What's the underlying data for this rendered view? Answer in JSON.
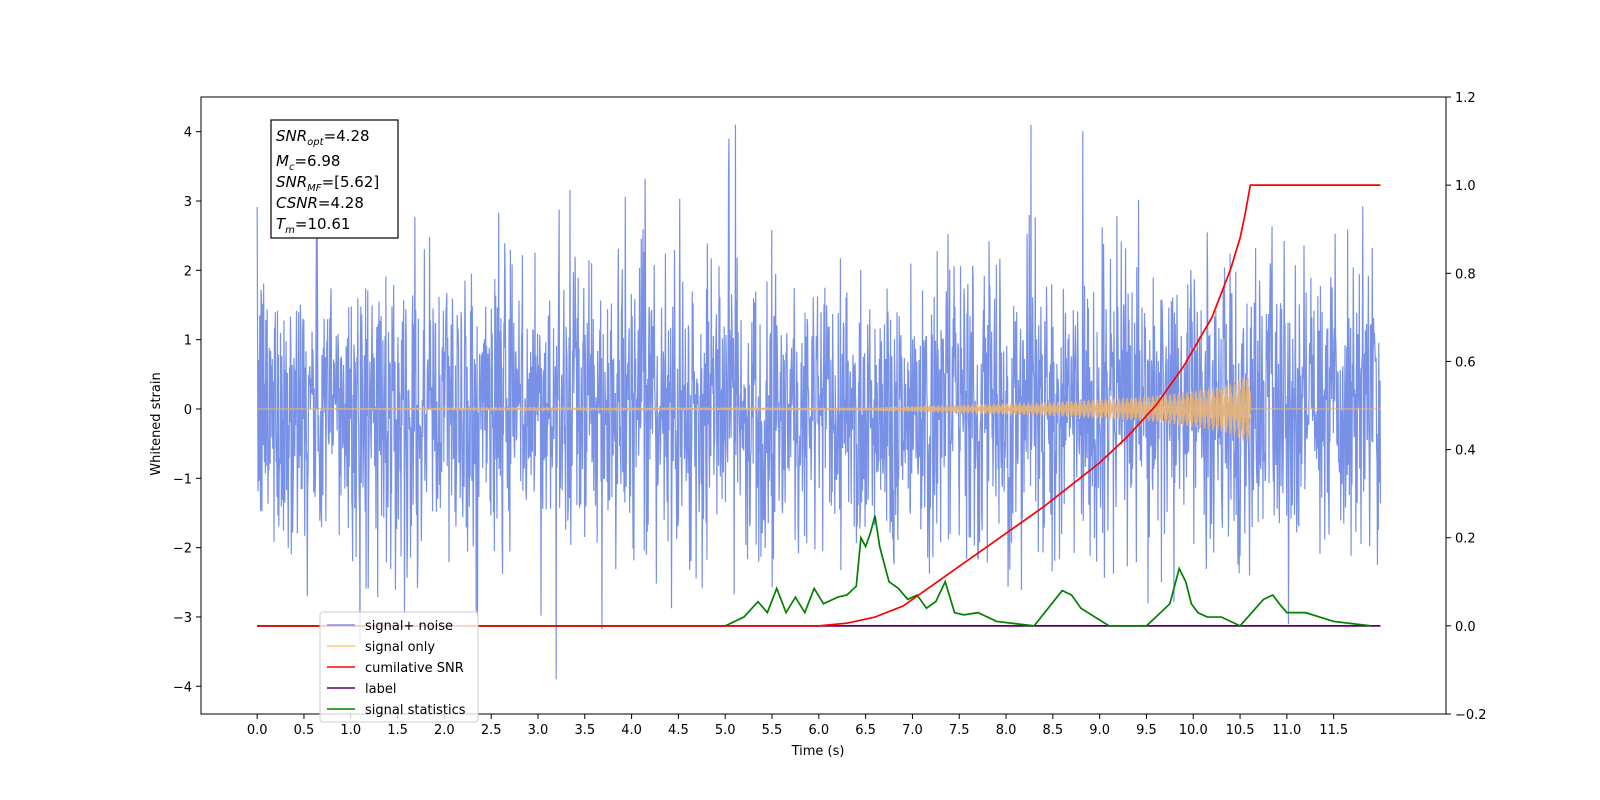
{
  "chart_data": {
    "type": "line",
    "xlabel": "Time (s)",
    "ylabel": "Whitened strain",
    "xlim": [
      -0.6,
      12.7
    ],
    "ylim": [
      -4.4,
      4.5
    ],
    "y2lim": [
      -0.2,
      1.2
    ],
    "x_ticks": [
      0.0,
      0.5,
      1.0,
      1.5,
      2.0,
      2.5,
      3.0,
      3.5,
      4.0,
      4.5,
      5.0,
      5.5,
      6.0,
      6.5,
      7.0,
      7.5,
      8.0,
      8.5,
      9.0,
      9.5,
      10.0,
      10.5,
      11.0,
      11.5
    ],
    "x_tick_labels": [
      "0.0",
      "0.5",
      "1.0",
      "1.5",
      "2.0",
      "2.5",
      "3.0",
      "3.5",
      "4.0",
      "4.5",
      "5.0",
      "5.5",
      "6.0",
      "6.5",
      "7.0",
      "7.5",
      "8.0",
      "8.5",
      "9.0",
      "9.5",
      "10.0",
      "10.5",
      "11.0",
      "11.5"
    ],
    "y_ticks": [
      -4,
      -3,
      -2,
      -1,
      0,
      1,
      2,
      3,
      4
    ],
    "y_tick_labels": [
      "−4",
      "−3",
      "−2",
      "−1",
      "0",
      "1",
      "2",
      "3",
      "4"
    ],
    "y2_ticks": [
      -0.2,
      0.0,
      0.2,
      0.4,
      0.6,
      0.8,
      1.0,
      1.2
    ],
    "y2_tick_labels": [
      "−0.2",
      "0.0",
      "0.2",
      "0.4",
      "0.6",
      "0.8",
      "1.0",
      "1.2"
    ],
    "grid": false,
    "legend_position": "lower-left",
    "annotation": {
      "lines": [
        {
          "sym": "SNR",
          "sub": "opt",
          "value": "=4.28"
        },
        {
          "sym": "M",
          "sub": "c",
          "value": "=6.98"
        },
        {
          "sym": "SNR",
          "sub": "MF",
          "value": "=[5.62]"
        },
        {
          "sym": "CSNR",
          "sub": "",
          "value": "=4.28"
        },
        {
          "sym": "T",
          "sub": "m",
          "value": "=10.61"
        }
      ]
    },
    "series": [
      {
        "name": "signal+ noise",
        "color": "#7891e6",
        "axis": "left",
        "x_range": [
          0.0,
          12.0
        ],
        "noise_sigma": 1.0,
        "extreme_range": [
          -3.9,
          4.1
        ]
      },
      {
        "name": "signal only",
        "color": "#e8b478",
        "axis": "left",
        "x_range": [
          0.0,
          12.0
        ],
        "merger_time": 10.61,
        "envelope": {
          "x": [
            0.0,
            6.5,
            7.5,
            8.5,
            9.5,
            10.0,
            10.4,
            10.61
          ],
          "y": [
            0.0,
            0.02,
            0.06,
            0.1,
            0.18,
            0.26,
            0.36,
            0.52
          ]
        }
      },
      {
        "name": "cumilative SNR",
        "color": "#ff0000",
        "axis": "right",
        "x": [
          0.0,
          5.5,
          6.0,
          6.3,
          6.6,
          6.9,
          7.2,
          7.5,
          7.8,
          8.1,
          8.4,
          8.7,
          9.0,
          9.3,
          9.6,
          9.9,
          10.2,
          10.4,
          10.5,
          10.55,
          10.61,
          11.0,
          12.0
        ],
        "y": [
          0.0,
          0.0,
          0.0,
          0.006,
          0.02,
          0.045,
          0.09,
          0.135,
          0.18,
          0.225,
          0.27,
          0.32,
          0.37,
          0.43,
          0.5,
          0.59,
          0.7,
          0.81,
          0.88,
          0.93,
          1.0,
          1.0,
          1.0
        ]
      },
      {
        "name": "label",
        "color": "#5a006a",
        "axis": "right",
        "x": [
          0.0,
          12.0
        ],
        "y": [
          0.0,
          0.0
        ]
      },
      {
        "name": "signal statistics",
        "color": "#008000",
        "axis": "right",
        "x": [
          0.0,
          5.0,
          5.2,
          5.35,
          5.45,
          5.55,
          5.65,
          5.75,
          5.85,
          5.95,
          6.05,
          6.2,
          6.3,
          6.4,
          6.45,
          6.5,
          6.55,
          6.6,
          6.65,
          6.75,
          6.85,
          6.95,
          7.05,
          7.15,
          7.25,
          7.35,
          7.45,
          7.55,
          7.7,
          7.9,
          8.3,
          8.6,
          8.7,
          8.8,
          8.95,
          9.1,
          9.5,
          9.75,
          9.85,
          9.92,
          9.98,
          10.05,
          10.15,
          10.3,
          10.5,
          10.75,
          10.85,
          10.92,
          11.0,
          11.2,
          11.5,
          11.9
        ],
        "y": [
          0.0,
          0.0,
          0.02,
          0.055,
          0.03,
          0.085,
          0.03,
          0.065,
          0.03,
          0.085,
          0.05,
          0.065,
          0.07,
          0.09,
          0.2,
          0.18,
          0.21,
          0.25,
          0.18,
          0.1,
          0.085,
          0.06,
          0.07,
          0.04,
          0.055,
          0.1,
          0.03,
          0.025,
          0.03,
          0.01,
          0.0,
          0.08,
          0.07,
          0.04,
          0.02,
          0.0,
          0.0,
          0.05,
          0.13,
          0.1,
          0.05,
          0.03,
          0.02,
          0.02,
          0.0,
          0.06,
          0.07,
          0.05,
          0.03,
          0.03,
          0.01,
          0.0
        ]
      }
    ]
  }
}
